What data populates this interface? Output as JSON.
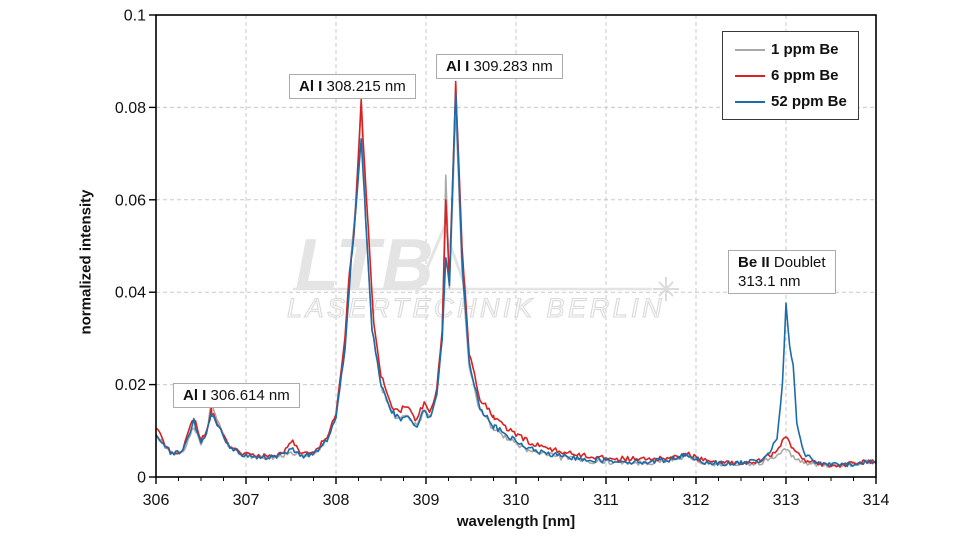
{
  "chart_data": {
    "type": "line",
    "title": "",
    "xlabel": "wavelength [nm]",
    "ylabel": "normalized intensity",
    "xlim": [
      306,
      314
    ],
    "ylim": [
      0,
      0.1
    ],
    "x_ticks": [
      306,
      307,
      308,
      309,
      310,
      311,
      312,
      313,
      314
    ],
    "x_tick_labels": [
      "306",
      "307",
      "308",
      "309",
      "310",
      "311",
      "312",
      "313",
      "314"
    ],
    "x_minor_step": 0.25,
    "y_ticks": [
      0,
      0.02,
      0.04,
      0.06,
      0.08,
      0.1
    ],
    "y_tick_labels": [
      "0",
      "0.02",
      "0.04",
      "0.06",
      "0.08",
      "0.1"
    ],
    "grid": "dashed-major-both",
    "legend_position": "top-right",
    "series": [
      {
        "name": "1 ppm Be",
        "color": "#a9a9a9",
        "points": [
          [
            306.0,
            0.0095
          ],
          [
            306.08,
            0.007
          ],
          [
            306.18,
            0.005
          ],
          [
            306.3,
            0.0055
          ],
          [
            306.42,
            0.011
          ],
          [
            306.5,
            0.0075
          ],
          [
            306.56,
            0.009
          ],
          [
            306.614,
            0.016
          ],
          [
            306.68,
            0.012
          ],
          [
            306.8,
            0.007
          ],
          [
            306.95,
            0.005
          ],
          [
            307.1,
            0.0042
          ],
          [
            307.25,
            0.004
          ],
          [
            307.4,
            0.0045
          ],
          [
            307.5,
            0.0055
          ],
          [
            307.62,
            0.0045
          ],
          [
            307.75,
            0.005
          ],
          [
            307.9,
            0.008
          ],
          [
            308.0,
            0.013
          ],
          [
            308.1,
            0.028
          ],
          [
            308.17,
            0.048
          ],
          [
            308.22,
            0.06
          ],
          [
            308.28,
            0.0815
          ],
          [
            308.33,
            0.055
          ],
          [
            308.4,
            0.032
          ],
          [
            308.5,
            0.02
          ],
          [
            308.6,
            0.0145
          ],
          [
            308.7,
            0.0125
          ],
          [
            308.8,
            0.013
          ],
          [
            308.9,
            0.011
          ],
          [
            308.98,
            0.014
          ],
          [
            309.05,
            0.0125
          ],
          [
            309.12,
            0.018
          ],
          [
            309.18,
            0.03
          ],
          [
            309.22,
            0.066
          ],
          [
            309.26,
            0.04
          ],
          [
            309.33,
            0.08
          ],
          [
            309.4,
            0.045
          ],
          [
            309.48,
            0.024
          ],
          [
            309.6,
            0.014
          ],
          [
            309.75,
            0.0105
          ],
          [
            309.9,
            0.0085
          ],
          [
            310.1,
            0.006
          ],
          [
            310.3,
            0.005
          ],
          [
            310.5,
            0.0042
          ],
          [
            310.8,
            0.0035
          ],
          [
            311.1,
            0.0032
          ],
          [
            311.4,
            0.003
          ],
          [
            311.7,
            0.0035
          ],
          [
            311.9,
            0.0045
          ],
          [
            312.1,
            0.003
          ],
          [
            312.4,
            0.0027
          ],
          [
            312.7,
            0.003
          ],
          [
            312.9,
            0.0045
          ],
          [
            313.0,
            0.006
          ],
          [
            313.1,
            0.004
          ],
          [
            313.3,
            0.0027
          ],
          [
            313.6,
            0.0025
          ],
          [
            313.85,
            0.003
          ],
          [
            314.0,
            0.0035
          ]
        ]
      },
      {
        "name": "6 ppm Be",
        "color": "#d92121",
        "points": [
          [
            306.0,
            0.011
          ],
          [
            306.08,
            0.0075
          ],
          [
            306.18,
            0.0052
          ],
          [
            306.3,
            0.006
          ],
          [
            306.42,
            0.013
          ],
          [
            306.5,
            0.008
          ],
          [
            306.56,
            0.0095
          ],
          [
            306.614,
            0.0145
          ],
          [
            306.68,
            0.0115
          ],
          [
            306.8,
            0.0072
          ],
          [
            306.95,
            0.0052
          ],
          [
            307.1,
            0.0045
          ],
          [
            307.25,
            0.0045
          ],
          [
            307.4,
            0.005
          ],
          [
            307.5,
            0.008
          ],
          [
            307.62,
            0.005
          ],
          [
            307.75,
            0.0055
          ],
          [
            307.9,
            0.0085
          ],
          [
            308.0,
            0.014
          ],
          [
            308.1,
            0.03
          ],
          [
            308.15,
            0.045
          ],
          [
            308.2,
            0.052
          ],
          [
            308.28,
            0.0805
          ],
          [
            308.34,
            0.06
          ],
          [
            308.42,
            0.033
          ],
          [
            308.5,
            0.022
          ],
          [
            308.6,
            0.016
          ],
          [
            308.7,
            0.014
          ],
          [
            308.78,
            0.0155
          ],
          [
            308.88,
            0.0125
          ],
          [
            308.98,
            0.016
          ],
          [
            309.05,
            0.014
          ],
          [
            309.12,
            0.019
          ],
          [
            309.18,
            0.032
          ],
          [
            309.22,
            0.06
          ],
          [
            309.26,
            0.042
          ],
          [
            309.33,
            0.085
          ],
          [
            309.4,
            0.05
          ],
          [
            309.48,
            0.027
          ],
          [
            309.6,
            0.017
          ],
          [
            309.75,
            0.013
          ],
          [
            309.9,
            0.0105
          ],
          [
            310.1,
            0.008
          ],
          [
            310.3,
            0.0065
          ],
          [
            310.5,
            0.0055
          ],
          [
            310.8,
            0.0045
          ],
          [
            311.1,
            0.004
          ],
          [
            311.4,
            0.0038
          ],
          [
            311.7,
            0.004
          ],
          [
            311.9,
            0.005
          ],
          [
            312.1,
            0.0035
          ],
          [
            312.4,
            0.003
          ],
          [
            312.7,
            0.0035
          ],
          [
            312.85,
            0.005
          ],
          [
            313.0,
            0.0085
          ],
          [
            313.08,
            0.006
          ],
          [
            313.2,
            0.0035
          ],
          [
            313.4,
            0.0028
          ],
          [
            313.6,
            0.0026
          ],
          [
            313.85,
            0.0032
          ],
          [
            314.0,
            0.0035
          ]
        ]
      },
      {
        "name": "52 ppm Be",
        "color": "#1b6ca8",
        "points": [
          [
            306.0,
            0.0095
          ],
          [
            306.08,
            0.007
          ],
          [
            306.18,
            0.005
          ],
          [
            306.3,
            0.0055
          ],
          [
            306.42,
            0.012
          ],
          [
            306.5,
            0.0075
          ],
          [
            306.56,
            0.009
          ],
          [
            306.614,
            0.014
          ],
          [
            306.68,
            0.0115
          ],
          [
            306.8,
            0.007
          ],
          [
            306.95,
            0.005
          ],
          [
            307.1,
            0.0042
          ],
          [
            307.25,
            0.0042
          ],
          [
            307.4,
            0.0048
          ],
          [
            307.5,
            0.006
          ],
          [
            307.62,
            0.0046
          ],
          [
            307.75,
            0.005
          ],
          [
            307.9,
            0.008
          ],
          [
            308.0,
            0.013
          ],
          [
            308.1,
            0.028
          ],
          [
            308.17,
            0.047
          ],
          [
            308.22,
            0.058
          ],
          [
            308.28,
            0.074
          ],
          [
            308.33,
            0.056
          ],
          [
            308.4,
            0.032
          ],
          [
            308.5,
            0.02
          ],
          [
            308.6,
            0.0145
          ],
          [
            308.7,
            0.0125
          ],
          [
            308.8,
            0.013
          ],
          [
            308.9,
            0.011
          ],
          [
            308.98,
            0.0145
          ],
          [
            309.05,
            0.0125
          ],
          [
            309.12,
            0.018
          ],
          [
            309.18,
            0.03
          ],
          [
            309.22,
            0.048
          ],
          [
            309.26,
            0.042
          ],
          [
            309.33,
            0.0835
          ],
          [
            309.4,
            0.047
          ],
          [
            309.48,
            0.025
          ],
          [
            309.6,
            0.015
          ],
          [
            309.75,
            0.011
          ],
          [
            309.9,
            0.009
          ],
          [
            310.1,
            0.0065
          ],
          [
            310.3,
            0.0052
          ],
          [
            310.5,
            0.0045
          ],
          [
            310.8,
            0.0038
          ],
          [
            311.1,
            0.0035
          ],
          [
            311.4,
            0.0032
          ],
          [
            311.7,
            0.0038
          ],
          [
            311.9,
            0.0048
          ],
          [
            312.1,
            0.0032
          ],
          [
            312.4,
            0.0028
          ],
          [
            312.7,
            0.0035
          ],
          [
            312.8,
            0.005
          ],
          [
            312.9,
            0.008
          ],
          [
            312.96,
            0.02
          ],
          [
            313.0,
            0.037
          ],
          [
            313.04,
            0.028
          ],
          [
            313.08,
            0.024
          ],
          [
            313.12,
            0.012
          ],
          [
            313.2,
            0.005
          ],
          [
            313.35,
            0.003
          ],
          [
            313.6,
            0.0026
          ],
          [
            313.85,
            0.003
          ],
          [
            314.0,
            0.0035
          ]
        ]
      }
    ],
    "annotations": [
      {
        "id": "a306",
        "bold": "Al I",
        "rest": "306.614 nm",
        "x": 306.614
      },
      {
        "id": "a308",
        "bold": "Al I",
        "rest": "308.215 nm",
        "x": 308.215
      },
      {
        "id": "a309",
        "bold": "Al I",
        "rest": "309.283 nm",
        "x": 309.283
      },
      {
        "id": "be",
        "bold": "Be II",
        "rest": "Doublet",
        "line2": "313.1 nm",
        "x": 313.1
      }
    ]
  },
  "watermark": {
    "logo": "LTB",
    "subtitle": "LASERTECHNIK BERLIN"
  }
}
